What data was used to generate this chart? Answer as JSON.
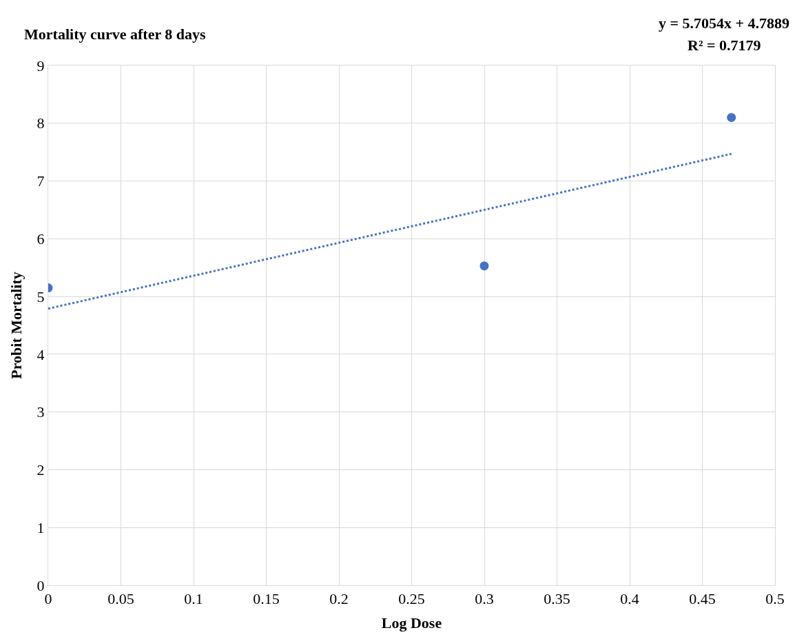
{
  "chart_data": {
    "type": "scatter",
    "title": "Mortality curve after 8 days",
    "xlabel": "Log Dose",
    "ylabel": "Probit Mortality",
    "annotations": [
      "y = 5.7054x + 4.7889",
      "R² = 0.7179"
    ],
    "series": [
      {
        "color": "#4472c4",
        "x": [
          0,
          0.3,
          0.47
        ],
        "values": [
          5.15,
          5.53,
          8.1
        ],
        "marker": "circle"
      },
      {
        "type": "line",
        "color": "#4472c4",
        "x": [
          0,
          0.47
        ],
        "values": [
          4.79,
          7.47
        ],
        "marker": "none",
        "line_style": "dotted"
      }
    ],
    "xlim": [
      0,
      0.5
    ],
    "xticks": [
      0,
      0.05,
      0.1,
      0.15,
      0.2,
      0.25,
      0.3,
      0.35,
      0.4,
      0.45,
      0.5
    ],
    "ylim": [
      0,
      9
    ],
    "yticks": [
      0,
      1,
      2,
      3,
      4,
      5,
      6,
      7,
      8,
      9
    ],
    "grid": true
  }
}
